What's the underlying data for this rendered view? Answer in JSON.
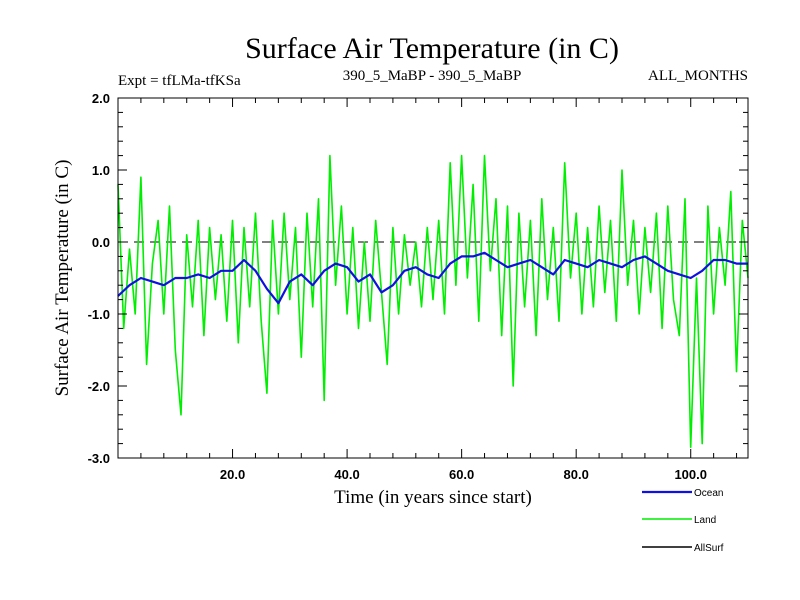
{
  "chart_data": {
    "type": "line",
    "title": "Surface Air Temperature (in C)",
    "subtitle_left": "Expt = tfLMa-tfKSa",
    "subtitle_center": "390_5_MaBP - 390_5_MaBP",
    "subtitle_right": "ALL_MONTHS",
    "xlabel": "Time (in years since start)",
    "ylabel": "Surface Air Temperature (in C)",
    "xlim": [
      0,
      110
    ],
    "ylim": [
      -3.0,
      2.0
    ],
    "x_ticks": [
      20,
      40,
      60,
      80,
      100
    ],
    "x_tick_labels": [
      "20.0",
      "40.0",
      "60.0",
      "80.0",
      "100.0"
    ],
    "y_ticks": [
      -3,
      -2,
      -1,
      0,
      1,
      2
    ],
    "y_tick_labels": [
      "-3.0",
      "-2.0",
      "-1.0",
      "0.0",
      "1.0",
      "2.0"
    ],
    "reference_line": 0.0,
    "legend_position": "bottom-right",
    "series": [
      {
        "name": "Ocean",
        "color": "#1010e0",
        "x": [
          0,
          2,
          4,
          6,
          8,
          10,
          12,
          14,
          16,
          18,
          20,
          22,
          24,
          26,
          28,
          30,
          32,
          34,
          36,
          38,
          40,
          42,
          44,
          46,
          48,
          50,
          52,
          54,
          56,
          58,
          60,
          62,
          64,
          66,
          68,
          70,
          72,
          74,
          76,
          78,
          80,
          82,
          84,
          86,
          88,
          90,
          92,
          94,
          96,
          98,
          100,
          102,
          104,
          106,
          108,
          110
        ],
        "values": [
          -0.75,
          -0.6,
          -0.5,
          -0.55,
          -0.6,
          -0.5,
          -0.5,
          -0.45,
          -0.5,
          -0.4,
          -0.4,
          -0.25,
          -0.4,
          -0.65,
          -0.85,
          -0.55,
          -0.45,
          -0.6,
          -0.4,
          -0.3,
          -0.35,
          -0.55,
          -0.45,
          -0.7,
          -0.6,
          -0.4,
          -0.35,
          -0.45,
          -0.5,
          -0.3,
          -0.2,
          -0.2,
          -0.15,
          -0.25,
          -0.35,
          -0.3,
          -0.25,
          -0.35,
          -0.45,
          -0.25,
          -0.3,
          -0.35,
          -0.25,
          -0.3,
          -0.35,
          -0.25,
          -0.2,
          -0.3,
          -0.4,
          -0.45,
          -0.5,
          -0.4,
          -0.25,
          -0.25,
          -0.3,
          -0.3
        ]
      },
      {
        "name": "Land",
        "color": "#00ee00",
        "x": [
          0,
          1,
          2,
          3,
          4,
          5,
          6,
          7,
          8,
          9,
          10,
          11,
          12,
          13,
          14,
          15,
          16,
          17,
          18,
          19,
          20,
          21,
          22,
          23,
          24,
          25,
          26,
          27,
          28,
          29,
          30,
          31,
          32,
          33,
          34,
          35,
          36,
          37,
          38,
          39,
          40,
          41,
          42,
          43,
          44,
          45,
          46,
          47,
          48,
          49,
          50,
          51,
          52,
          53,
          54,
          55,
          56,
          57,
          58,
          59,
          60,
          61,
          62,
          63,
          64,
          65,
          66,
          67,
          68,
          69,
          70,
          71,
          72,
          73,
          74,
          75,
          76,
          77,
          78,
          79,
          80,
          81,
          82,
          83,
          84,
          85,
          86,
          87,
          88,
          89,
          90,
          91,
          92,
          93,
          94,
          95,
          96,
          97,
          98,
          99,
          100,
          101,
          102,
          103,
          104,
          105,
          106,
          107,
          108,
          109,
          110
        ],
        "values": [
          0.8,
          -1.2,
          -0.1,
          -1.0,
          0.9,
          -1.7,
          -0.3,
          0.3,
          -1.0,
          0.5,
          -1.5,
          -2.4,
          0.1,
          -0.9,
          0.3,
          -1.3,
          0.2,
          -0.8,
          0.1,
          -1.1,
          0.3,
          -1.4,
          0.2,
          -0.9,
          0.4,
          -1.1,
          -2.1,
          0.3,
          -1.0,
          0.4,
          -0.8,
          0.2,
          -1.6,
          0.4,
          -0.9,
          0.6,
          -2.2,
          1.2,
          -0.6,
          0.5,
          -1.0,
          0.2,
          -1.2,
          0.0,
          -1.1,
          0.3,
          -0.7,
          -1.7,
          0.2,
          -1.0,
          0.1,
          -0.6,
          0.0,
          -0.9,
          0.2,
          -0.8,
          0.3,
          -1.0,
          1.1,
          -0.6,
          1.2,
          -0.5,
          0.8,
          -1.1,
          1.2,
          -0.4,
          0.6,
          -1.3,
          0.5,
          -2.0,
          0.4,
          -0.9,
          0.3,
          -1.3,
          0.6,
          -0.8,
          0.2,
          -1.1,
          1.1,
          -0.5,
          0.4,
          -1.0,
          0.2,
          -0.9,
          0.5,
          -0.7,
          0.3,
          -1.1,
          1.0,
          -0.6,
          0.3,
          -1.0,
          0.2,
          -0.7,
          0.4,
          -1.2,
          0.5,
          -0.8,
          -1.3,
          0.6,
          -2.85,
          -0.5,
          -2.8,
          0.5,
          -1.0,
          0.2,
          -0.6,
          0.7,
          -1.8,
          0.3,
          -0.5
        ]
      },
      {
        "name": "AllSurf",
        "color": "#000000",
        "x": [],
        "values": []
      }
    ]
  }
}
